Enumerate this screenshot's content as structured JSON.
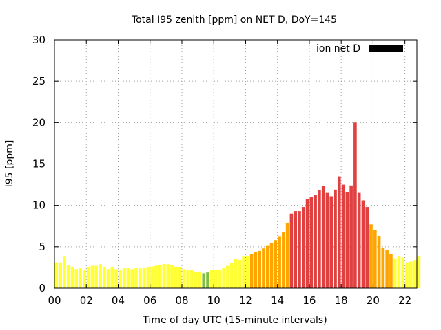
{
  "chart_data": {
    "type": "bar",
    "title": "Total I95 zenith [ppm] on NET D, DoY=145",
    "xlabel": "Time of day UTC (15-minute intervals)",
    "ylabel": "I95 [ppm]",
    "ylim": [
      0,
      30
    ],
    "yticks": [
      0,
      5,
      10,
      15,
      20,
      25,
      30
    ],
    "xlim": [
      0,
      22.75
    ],
    "xticks": [
      0,
      2,
      4,
      6,
      8,
      10,
      12,
      14,
      16,
      18,
      20,
      22
    ],
    "xtick_labels": [
      "00",
      "02",
      "04",
      "06",
      "08",
      "10",
      "12",
      "14",
      "16",
      "18",
      "20",
      "22"
    ],
    "grid": true,
    "legend_position": "top-right",
    "legend_label": "ion net D",
    "legend_color": "#000000",
    "colors": {
      "low": "#ffff33",
      "green": "#7fbf3f",
      "orange": "#ffa500",
      "red": "#e04040"
    },
    "x_step_hours": 0.25,
    "values": [
      3.1,
      3.1,
      3.8,
      2.8,
      2.6,
      2.3,
      2.4,
      2.2,
      2.5,
      2.7,
      2.7,
      2.9,
      2.6,
      2.3,
      2.5,
      2.3,
      2.2,
      2.4,
      2.4,
      2.3,
      2.4,
      2.4,
      2.4,
      2.5,
      2.6,
      2.7,
      2.8,
      2.9,
      2.9,
      2.8,
      2.6,
      2.5,
      2.3,
      2.2,
      2.2,
      2.0,
      2.0,
      1.8,
      1.9,
      2.2,
      2.2,
      2.2,
      2.4,
      2.7,
      3.0,
      3.5,
      3.4,
      3.8,
      3.9,
      4.1,
      4.4,
      4.5,
      4.8,
      5.1,
      5.4,
      5.8,
      6.2,
      6.8,
      7.9,
      9.0,
      9.3,
      9.3,
      9.8,
      10.8,
      11.0,
      11.3,
      11.8,
      12.3,
      11.5,
      11.1,
      11.9,
      13.5,
      12.5,
      11.6,
      12.4,
      20.0,
      11.5,
      10.6,
      9.8,
      7.7,
      7.0,
      6.3,
      4.9,
      4.6,
      4.1,
      3.6,
      3.9,
      3.7,
      3.1,
      3.2,
      3.4,
      3.9
    ],
    "bar_colors": [
      "low",
      "low",
      "low",
      "low",
      "low",
      "low",
      "low",
      "low",
      "low",
      "low",
      "low",
      "low",
      "low",
      "low",
      "low",
      "low",
      "low",
      "low",
      "low",
      "low",
      "low",
      "low",
      "low",
      "low",
      "low",
      "low",
      "low",
      "low",
      "low",
      "low",
      "low",
      "low",
      "low",
      "low",
      "low",
      "low",
      "low",
      "green",
      "green",
      "low",
      "low",
      "low",
      "low",
      "low",
      "low",
      "low",
      "low",
      "low",
      "low",
      "orange",
      "orange",
      "orange",
      "orange",
      "orange",
      "orange",
      "orange",
      "orange",
      "orange",
      "orange",
      "red",
      "red",
      "red",
      "red",
      "red",
      "red",
      "red",
      "red",
      "red",
      "red",
      "red",
      "red",
      "red",
      "red",
      "red",
      "red",
      "red",
      "red",
      "red",
      "red",
      "orange",
      "orange",
      "orange",
      "orange",
      "orange",
      "orange",
      "low",
      "low",
      "low",
      "low",
      "low",
      "low",
      "low"
    ]
  }
}
